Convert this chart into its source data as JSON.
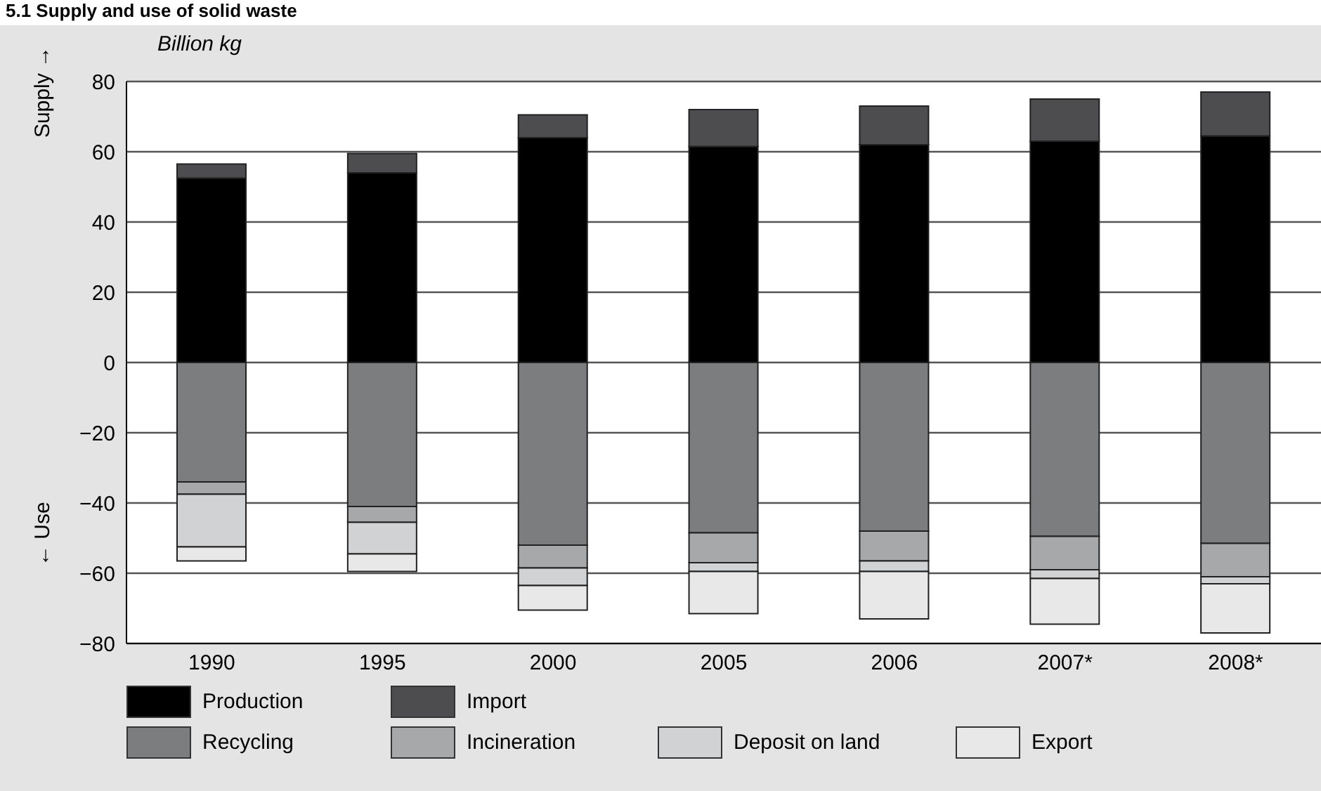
{
  "chart_data": {
    "type": "bar",
    "title": "5.1 Supply and use of solid waste",
    "ylabel": "Supply →",
    "annotations": [
      "Billion kg",
      "← Use"
    ],
    "categories": [
      "1990",
      "1995",
      "2000",
      "2005",
      "2006",
      "2007*",
      "2008*"
    ],
    "stacked": true,
    "series": [
      {
        "name": "Production",
        "color": "#000000",
        "values": [
          52.5,
          54,
          64,
          61.5,
          62,
          63,
          64.5
        ]
      },
      {
        "name": "Import",
        "color": "#4d4d4f",
        "values": [
          4,
          5.5,
          6.5,
          10.5,
          11,
          12,
          12.5
        ]
      },
      {
        "name": "Recycling",
        "color": "#7c7d7f",
        "values": [
          -34,
          -41,
          -52,
          -48.5,
          -48,
          -49.5,
          -51.5
        ]
      },
      {
        "name": "Incineration",
        "color": "#a7a8aa",
        "values": [
          -3.5,
          -4.5,
          -6.5,
          -8.5,
          -8.5,
          -9.5,
          -9.5
        ]
      },
      {
        "name": "Deposit on land",
        "color": "#d1d2d4",
        "values": [
          -15,
          -9,
          -5,
          -2.5,
          -3,
          -2.5,
          -2
        ]
      },
      {
        "name": "Export",
        "color": "#e8e8e8",
        "values": [
          -4,
          -5,
          -7,
          -12,
          -13.5,
          -13,
          -14
        ]
      }
    ],
    "ylim": [
      -80,
      80
    ],
    "yticks": [
      {
        "value": -80,
        "label": "−80"
      },
      {
        "value": -60,
        "label": "−60"
      },
      {
        "value": -40,
        "label": "−40"
      },
      {
        "value": -20,
        "label": "−20"
      },
      0,
      20,
      40,
      60,
      80
    ],
    "grid": "y",
    "legend": "bottom"
  }
}
